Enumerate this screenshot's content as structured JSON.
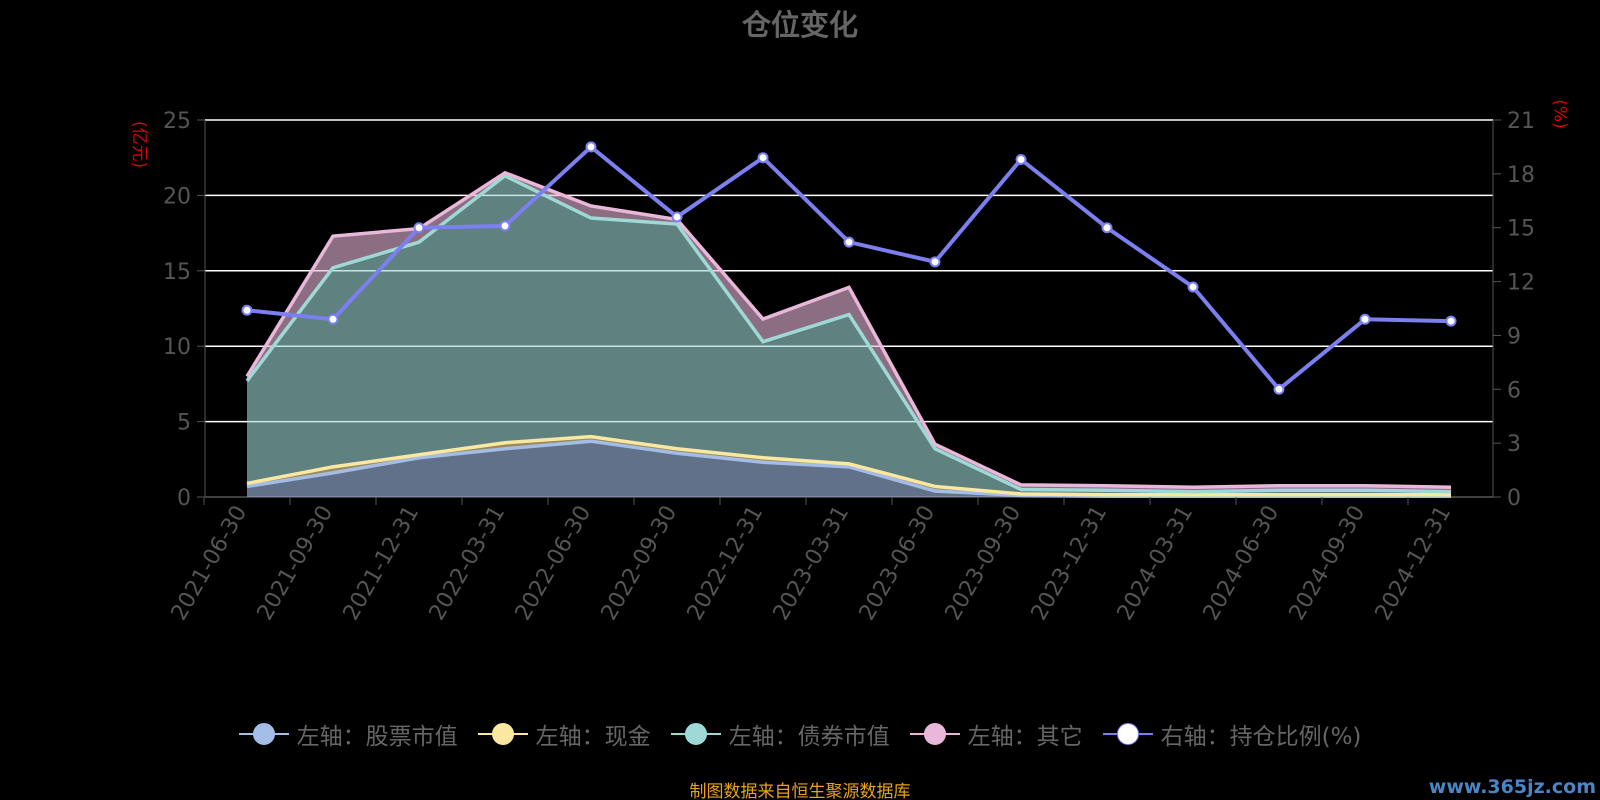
{
  "chart_data": {
    "type": "area",
    "title": "仓位变化",
    "left_unit": "(亿元)",
    "right_unit": "(%)",
    "categories": [
      "2021-06-30",
      "2021-09-30",
      "2021-12-31",
      "2022-03-31",
      "2022-06-30",
      "2022-09-30",
      "2022-12-31",
      "2023-03-31",
      "2023-06-30",
      "2023-09-30",
      "2023-12-31",
      "2024-03-31",
      "2024-06-30",
      "2024-09-30",
      "2024-12-31"
    ],
    "left_axis": {
      "min": 0,
      "max": 25,
      "ticks": [
        0,
        5,
        10,
        15,
        20,
        25
      ]
    },
    "right_axis": {
      "min": 0,
      "max": 21,
      "ticks": [
        0,
        3,
        6,
        9,
        12,
        15,
        18,
        21
      ]
    },
    "grid": true,
    "legend_position": "bottom",
    "series": [
      {
        "name": "左轴：股票市值",
        "axis": "left",
        "kind": "stacked-area",
        "color": "#a4bde6",
        "values": [
          0.7,
          1.6,
          2.6,
          3.2,
          3.7,
          2.9,
          2.3,
          2.0,
          0.4,
          0.1,
          0.05,
          0.05,
          0.05,
          0.05,
          0.05
        ]
      },
      {
        "name": "左轴：现金",
        "axis": "left",
        "kind": "stacked-area",
        "color": "#fbe8a0",
        "values": [
          0.2,
          0.4,
          0.2,
          0.4,
          0.3,
          0.3,
          0.3,
          0.2,
          0.3,
          0.1,
          0.1,
          0.1,
          0.1,
          0.1,
          0.1
        ]
      },
      {
        "name": "左轴：债券市值",
        "axis": "left",
        "kind": "stacked-area",
        "color": "#9ed9d6",
        "values": [
          6.8,
          13.2,
          14.1,
          17.7,
          14.5,
          14.9,
          7.7,
          9.9,
          2.5,
          0.3,
          0.3,
          0.2,
          0.3,
          0.3,
          0.2
        ]
      },
      {
        "name": "左轴：其它",
        "axis": "left",
        "kind": "stacked-area",
        "color": "#e9b7d9",
        "values": [
          0.3,
          2.1,
          0.9,
          0.2,
          0.8,
          0.3,
          1.5,
          1.8,
          0.3,
          0.3,
          0.3,
          0.3,
          0.3,
          0.3,
          0.3
        ]
      },
      {
        "name": "右轴：持仓比例(%)",
        "axis": "right",
        "kind": "line",
        "color": "#7b7ff0",
        "values": [
          10.4,
          9.9,
          15.0,
          15.1,
          19.5,
          15.6,
          18.9,
          14.2,
          13.1,
          18.8,
          15.0,
          11.7,
          6.0,
          9.9,
          9.8
        ]
      }
    ],
    "source_note": "制图数据来自恒生聚源数据库",
    "watermark": "www.365jz.com"
  }
}
